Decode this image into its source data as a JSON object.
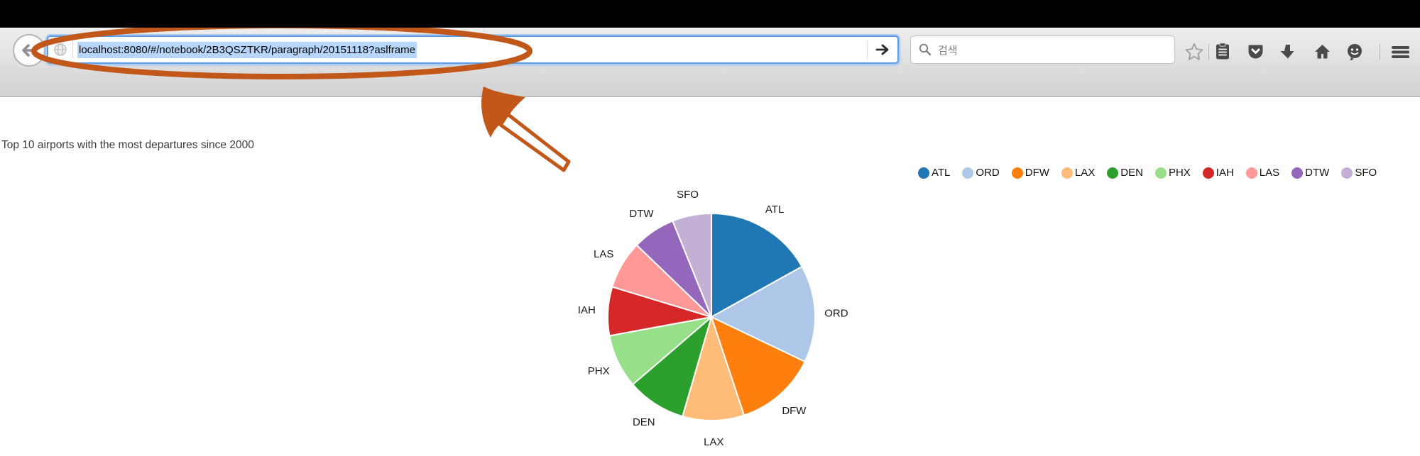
{
  "browser": {
    "url": "localhost:8080/#/notebook/2B3QSZTKR/paragraph/20151118?aslframe",
    "url_selected": true,
    "search_placeholder": "검색",
    "toolbar_icons": [
      "back-arrow",
      "globe-favicon",
      "go-arrow",
      "search-magnifier",
      "bookmark-star",
      "reading-list-clipboard",
      "pocket",
      "downloads",
      "home",
      "hello-smiley",
      "menu-hamburger"
    ],
    "annotation": {
      "type": "ellipse-circle-and-arrow",
      "color": "#c2571a",
      "target": "address-bar"
    }
  },
  "page": {
    "title": "Top 10 airports with the most departures since 2000"
  },
  "chart_data": {
    "type": "pie",
    "title": "Top 10 airports with the most departures since 2000",
    "labels": [
      "ATL",
      "ORD",
      "DFW",
      "LAX",
      "DEN",
      "PHX",
      "IAH",
      "LAS",
      "DTW",
      "SFO"
    ],
    "values": [
      16.9,
      15.2,
      12.8,
      9.6,
      9.2,
      8.4,
      7.6,
      7.5,
      6.7,
      6.1
    ],
    "value_unit": "percent (estimated from slice angles; no numeric labels shown)",
    "colors": [
      "#1f77b4",
      "#aec7e8",
      "#ff7f0e",
      "#ffbb78",
      "#2ca02c",
      "#98df8a",
      "#d62728",
      "#ff9896",
      "#9467bd",
      "#c5b0d5"
    ],
    "start_angle_deg": 0,
    "direction": "clockwise",
    "labels_outside": true,
    "legend_position": "top-right",
    "legend_entries": [
      "ATL",
      "ORD",
      "DFW",
      "LAX",
      "DEN",
      "PHX",
      "IAH",
      "LAS",
      "DTW",
      "SFO"
    ]
  }
}
